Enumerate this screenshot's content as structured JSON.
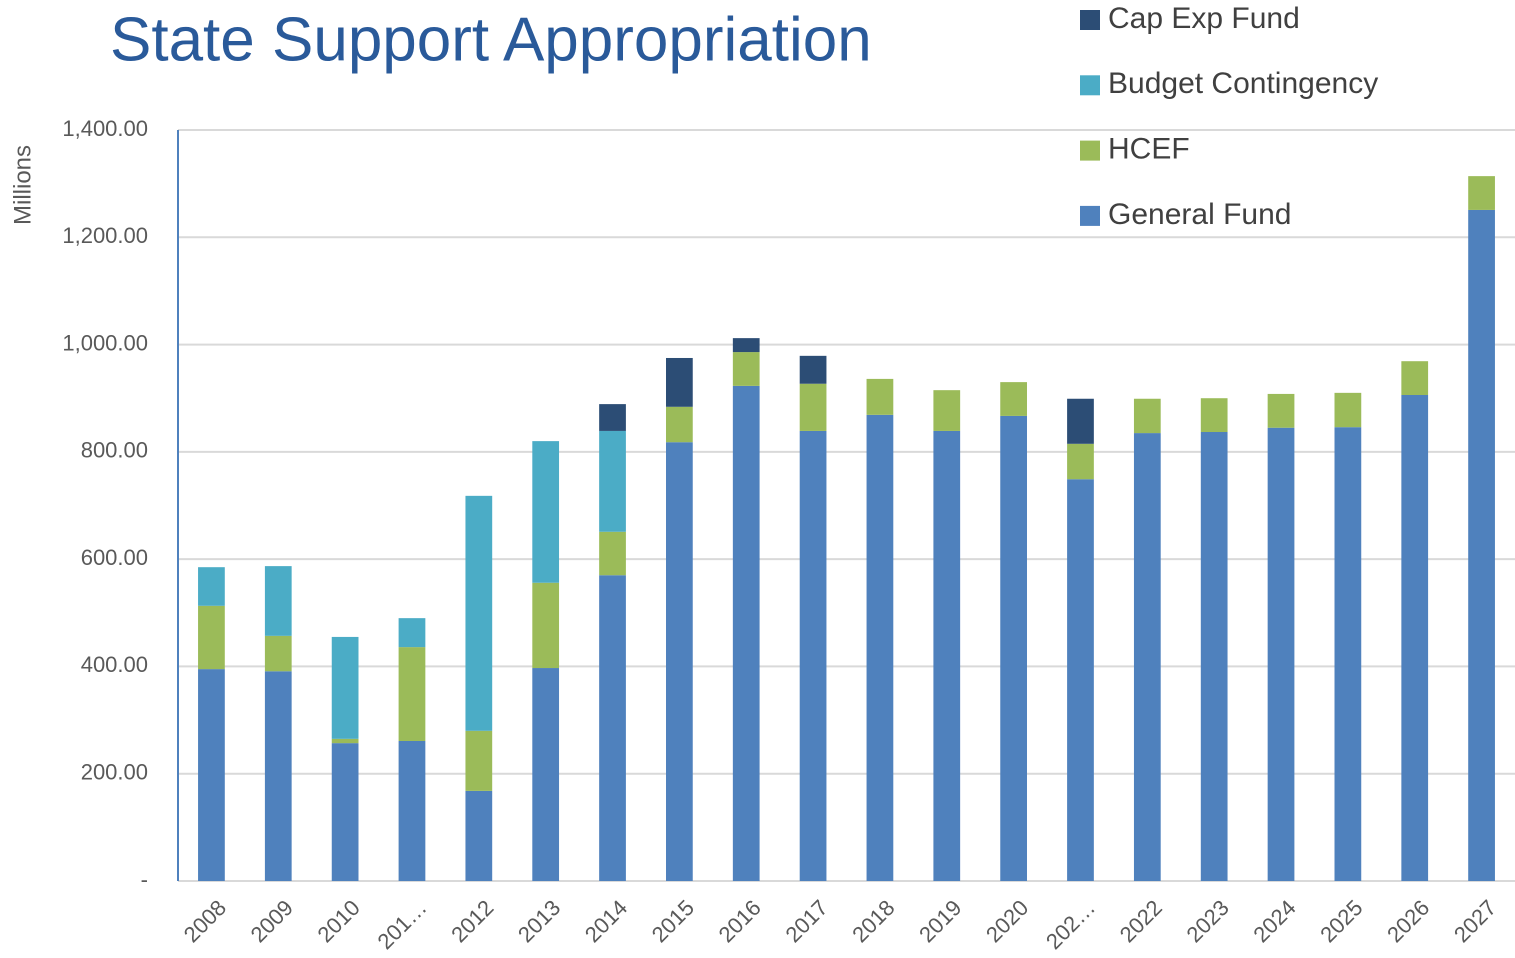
{
  "chart_data": {
    "type": "stacked_bar",
    "title": "State Support Appropriation",
    "y_label": "Millions",
    "categories": [
      "2008",
      "2009",
      "2010",
      "201…",
      "2012",
      "2013",
      "2014",
      "2015",
      "2016",
      "2017",
      "2018",
      "2019",
      "2020",
      "202…",
      "2022",
      "2023",
      "2024",
      "2025",
      "2026",
      "2027"
    ],
    "series": [
      {
        "name": "General Fund",
        "color": "#4f81bd",
        "values": [
          395,
          391,
          257,
          261,
          168,
          397,
          570,
          818,
          923,
          839,
          869,
          839,
          867,
          749,
          835,
          837,
          845,
          846,
          906,
          1251
        ]
      },
      {
        "name": "HCEF",
        "color": "#9bbb59",
        "values": [
          118,
          66,
          8,
          175,
          112,
          159,
          81,
          66,
          63,
          88,
          67,
          76,
          63,
          66,
          64,
          63,
          63,
          64,
          63,
          63
        ]
      },
      {
        "name": "Budget Contingency",
        "color": "#4bacc6",
        "values": [
          72,
          130,
          190,
          54,
          438,
          264,
          188,
          0,
          0,
          0,
          0,
          0,
          0,
          0,
          0,
          0,
          0,
          0,
          0,
          0
        ]
      },
      {
        "name": "Cap Exp Fund",
        "color": "#2c4d75",
        "values": [
          0,
          0,
          0,
          0,
          0,
          0,
          50,
          91,
          26,
          52,
          0,
          0,
          0,
          84,
          0,
          0,
          0,
          0,
          0,
          0
        ]
      }
    ],
    "ylim": [
      0,
      1400
    ],
    "yticks": [
      {
        "value": 0,
        "label": "-"
      },
      {
        "value": 200,
        "label": "200.00"
      },
      {
        "value": 400,
        "label": "400.00"
      },
      {
        "value": 600,
        "label": "600.00"
      },
      {
        "value": 800,
        "label": "800.00"
      },
      {
        "value": 1000,
        "label": "1,000.00"
      },
      {
        "value": 1200,
        "label": "1,200.00"
      },
      {
        "value": 1400,
        "label": "1,400.00"
      }
    ],
    "grid": true,
    "legend": "top-right"
  }
}
